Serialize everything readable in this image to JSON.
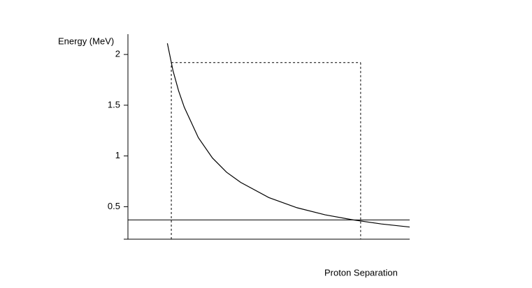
{
  "chart_data": {
    "type": "line",
    "y_label": "Energy (MeV)",
    "x_label": "Proton Separation",
    "x": [
      1.4,
      1.6,
      1.8,
      2,
      2.5,
      3,
      3.5,
      4,
      5,
      6,
      7,
      8,
      9,
      10
    ],
    "series": [
      {
        "color": "#000000",
        "values": [
          2.11,
          1.84,
          1.64,
          1.48,
          1.18,
          0.98,
          0.84,
          0.74,
          0.59,
          0.49,
          0.42,
          0.37,
          0.33,
          0.3
        ]
      }
    ],
    "xlim": [
      0,
      10
    ],
    "ylim": [
      0.18,
      2.2
    ],
    "yticks": [
      0.5,
      1,
      1.5,
      2
    ],
    "hline": 0.37,
    "dashed_box": {
      "x1": 1.54,
      "x2": 8.26,
      "y": 1.92
    }
  }
}
